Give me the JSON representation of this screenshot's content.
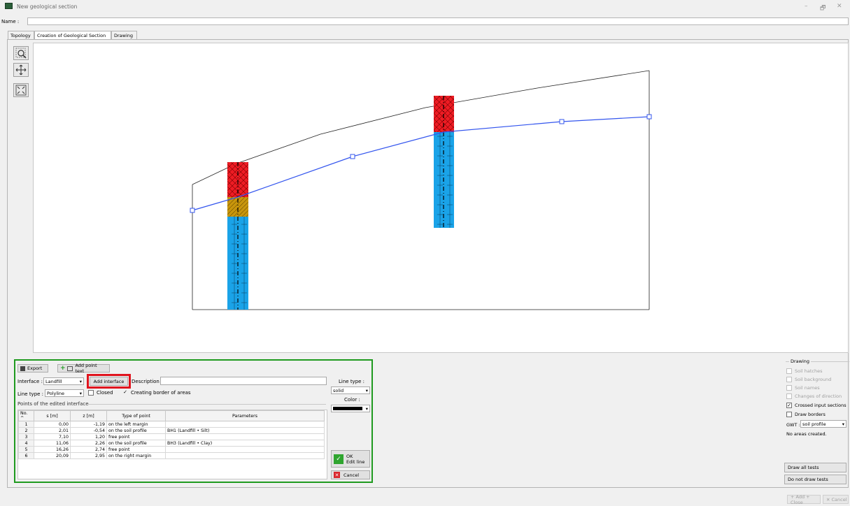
{
  "window": {
    "title": "New geological section",
    "minimize": "–",
    "maximize": "🗗",
    "close": "✕"
  },
  "name_row": {
    "label": "Name :",
    "value": ""
  },
  "tabs": [
    {
      "label": "Topology"
    },
    {
      "label": "Creation of Geological Section"
    },
    {
      "label": "Drawing"
    }
  ],
  "tools": {
    "zoom": "zoom-icon",
    "pan": "pan-icon",
    "fit": "fit-icon"
  },
  "panel": {
    "export_label": "Export",
    "add_point_text_label": "Add point text",
    "interface_label": "Interface :",
    "interface_value": "Landfill",
    "add_interface_label": "Add interface",
    "description_label": "Description :",
    "description_value": "",
    "line_type_label": "Line type :",
    "line_type_value": "Polyline",
    "closed_label": "Closed",
    "creating_border_label": "Creating border of areas",
    "points_group_label": "Points of the edited interface",
    "right_line_type_label": "Line type :",
    "right_line_type_value": "solid",
    "color_label": "Color :",
    "ok_label": "OK",
    "edit_line_label": "Edit line",
    "cancel_label": "Cancel",
    "columns": [
      "No.",
      "s [m]",
      "z [m]",
      "Type of point",
      "Parameters"
    ],
    "rows": [
      [
        "1",
        "0,00",
        "-1,19",
        "on the left margin",
        ""
      ],
      [
        "2",
        "2,01",
        "-0,54",
        "on the soil profile",
        "BH1 (Landfill • Silt)"
      ],
      [
        "3",
        "7,10",
        "1,20",
        "free point",
        ""
      ],
      [
        "4",
        "11,06",
        "2,26",
        "on the soil profile",
        "BH3 (Landfill • Clay)"
      ],
      [
        "5",
        "16,26",
        "2,74",
        "free point",
        ""
      ],
      [
        "6",
        "20,09",
        "2,95",
        "on the right margin",
        ""
      ]
    ]
  },
  "drawing": {
    "group_label": "Drawing",
    "soil_hatches": "Soil hatches",
    "soil_background": "Soil background",
    "soil_names": "Soil names",
    "changes_of_direction": "Changes of direction",
    "crossed_input_sections": "Crossed input sections",
    "draw_borders": "Draw borders",
    "gwt_label": "GWT :",
    "gwt_value": "soil profile",
    "no_areas": "No areas created.",
    "draw_all_tests": "Draw all tests",
    "do_not_draw_tests": "Do not draw tests"
  },
  "footer": {
    "add_close": "+ Add + Close",
    "cancel": "✕ Cancel"
  },
  "colors": {
    "accent_green": "#1f9a1f",
    "highlight_red": "#e0141e",
    "interface_blue": "#3355ee",
    "landfill": "#ee1c24",
    "silt": "#c8960c",
    "clay": "#1aa3e8"
  }
}
